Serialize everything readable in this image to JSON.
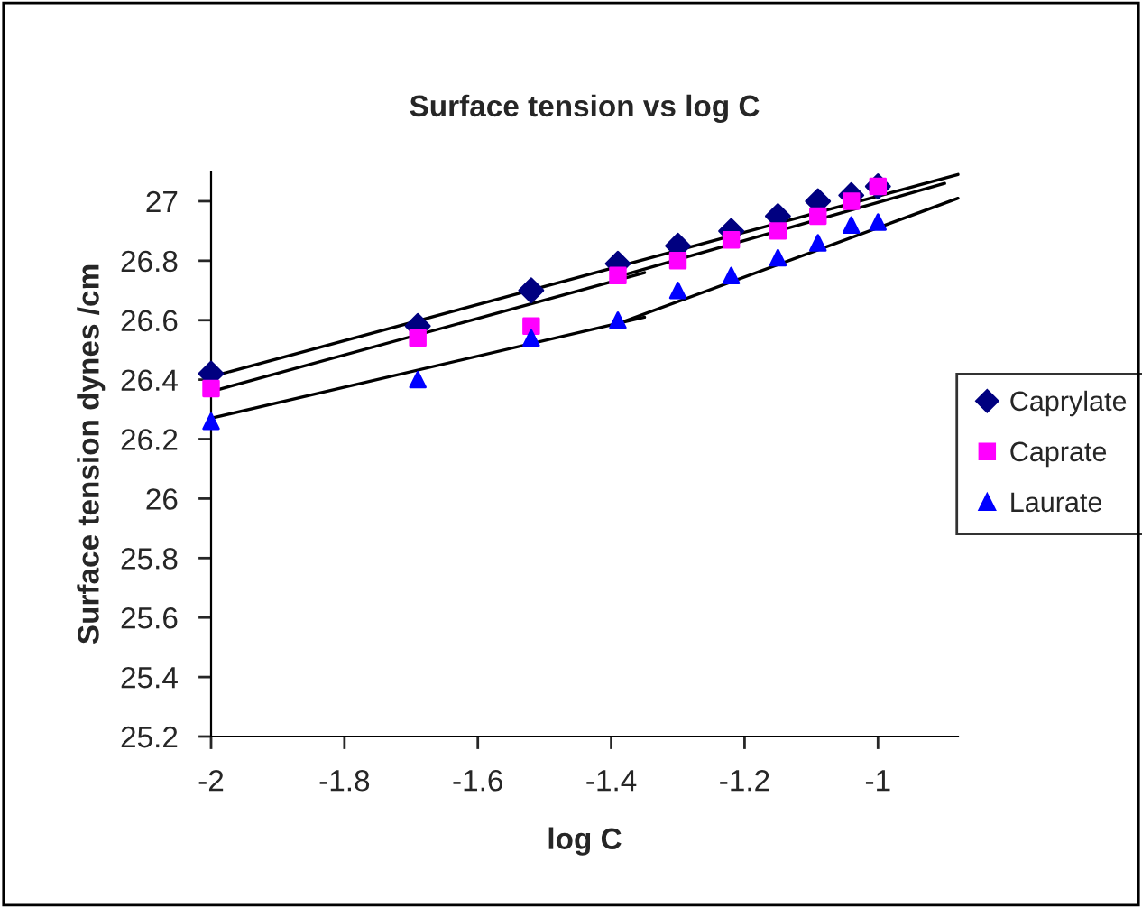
{
  "chart_data": {
    "type": "scatter",
    "title": "Surface tension vs log C",
    "xlabel": "log C",
    "ylabel": "Surface tension dynes /cm",
    "xlim": [
      -2,
      -0.88
    ],
    "xticks": [
      -2,
      -1.8,
      -1.6,
      -1.4,
      -1.2,
      -1
    ],
    "ylim": [
      25.2,
      27.1
    ],
    "yticks": [
      25.2,
      25.4,
      25.6,
      25.8,
      26,
      26.2,
      26.4,
      26.6,
      26.8,
      27
    ],
    "grid": false,
    "legend": "right",
    "x": [
      -2,
      -1.69,
      -1.52,
      -1.39,
      -1.3,
      -1.22,
      -1.15,
      -1.09,
      -1.04,
      -1
    ],
    "series": [
      {
        "name": "Caprylate",
        "color": "#000080",
        "marker": "diamond",
        "values": [
          26.42,
          26.58,
          26.7,
          26.79,
          26.85,
          26.9,
          26.95,
          27.0,
          27.02,
          27.05
        ]
      },
      {
        "name": "Caprate",
        "color": "#ff00ff",
        "marker": "square",
        "values": [
          26.37,
          26.54,
          26.58,
          26.75,
          26.8,
          26.87,
          26.9,
          26.95,
          27.0,
          27.05
        ]
      },
      {
        "name": "Laurate",
        "color": "#0000ff",
        "marker": "triangle",
        "values": [
          26.26,
          26.4,
          26.54,
          26.6,
          26.7,
          26.75,
          26.81,
          26.86,
          26.92,
          26.93
        ]
      },
      {
        "type": "line",
        "color": "#000000",
        "x": [
          -2,
          -0.88
        ],
        "values": [
          26.41,
          27.09
        ]
      },
      {
        "type": "line",
        "color": "#000000",
        "x": [
          -2,
          -1.35
        ],
        "values": [
          26.36,
          26.76
        ]
      },
      {
        "type": "line",
        "color": "#000000",
        "x": [
          -1.4,
          -0.9
        ],
        "values": [
          26.74,
          27.06
        ]
      },
      {
        "type": "line",
        "color": "#000000",
        "x": [
          -2,
          -1.35
        ],
        "values": [
          26.27,
          26.61
        ]
      },
      {
        "type": "line",
        "color": "#000000",
        "x": [
          -1.4,
          -0.88
        ],
        "values": [
          26.58,
          27.01
        ]
      }
    ]
  }
}
